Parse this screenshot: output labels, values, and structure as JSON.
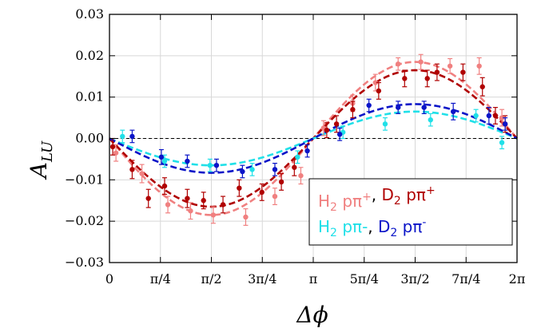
{
  "chart_data": {
    "type": "scatter",
    "xlabel": "Δϕ",
    "ylabel_main": "A",
    "ylabel_sub": "LU",
    "xlim": [
      0,
      6.2832
    ],
    "ylim": [
      -0.03,
      0.03
    ],
    "grid": true,
    "legend_position": "bottom-right",
    "x_ticks": [
      {
        "value": 0,
        "label": "0"
      },
      {
        "value": 0.7854,
        "label": "π/4"
      },
      {
        "value": 1.5708,
        "label": "π/2"
      },
      {
        "value": 2.3562,
        "label": "3π/4"
      },
      {
        "value": 3.1416,
        "label": "π"
      },
      {
        "value": 3.927,
        "label": "5π/4"
      },
      {
        "value": 4.7124,
        "label": "3π/2"
      },
      {
        "value": 5.4978,
        "label": "7π/4"
      },
      {
        "value": 6.2832,
        "label": "2π"
      }
    ],
    "y_ticks": [
      {
        "value": 0.03,
        "label": "0.03"
      },
      {
        "value": 0.02,
        "label": "0.02"
      },
      {
        "value": 0.01,
        "label": "0.01"
      },
      {
        "value": 0.0,
        "label": "0.00"
      },
      {
        "value": -0.01,
        "label": "−0.01"
      },
      {
        "value": -0.02,
        "label": "−0.02"
      },
      {
        "value": -0.03,
        "label": "−0.03"
      }
    ],
    "legend": {
      "line1": [
        {
          "text": "H",
          "sub": "2",
          "rest": " pπ",
          "sup": "+",
          "color": "#f08080"
        },
        {
          "text": ", ",
          "color": "#000000"
        },
        {
          "text": "D",
          "sub": "2",
          "rest": " pπ",
          "sup": "+",
          "color": "#b00000"
        }
      ],
      "line2": [
        {
          "text": "H",
          "sub": "2",
          "rest": " pπ-",
          "sup": "",
          "color": "#20e0e8"
        },
        {
          "text": ", ",
          "color": "#000000"
        },
        {
          "text": "D",
          "sub": "2",
          "rest": " pπ",
          "sup": "-",
          "color": "#0a14c8"
        }
      ]
    },
    "series": [
      {
        "color": "#f08080",
        "amplitude": -0.0185,
        "x": [
          0.1,
          0.5,
          0.9,
          1.25,
          1.6,
          2.1,
          2.55,
          2.95,
          3.3,
          3.75,
          4.1,
          4.45,
          4.8,
          5.25,
          5.7,
          6.05
        ],
        "y": [
          -0.0035,
          -0.0085,
          -0.016,
          -0.0175,
          -0.0185,
          -0.019,
          -0.014,
          -0.009,
          0.0025,
          0.0085,
          0.0135,
          0.018,
          0.0185,
          0.0175,
          0.0175,
          0.005
        ],
        "err": [
          0.002,
          0.0022,
          0.002,
          0.002,
          0.002,
          0.002,
          0.002,
          0.002,
          0.0018,
          0.002,
          0.002,
          0.0015,
          0.0018,
          0.0018,
          0.002,
          0.002
        ]
      },
      {
        "color": "#b00000",
        "amplitude": -0.0165,
        "x": [
          0.05,
          0.35,
          0.6,
          0.85,
          1.2,
          1.45,
          1.75,
          2.0,
          2.35,
          2.65,
          2.85,
          3.35,
          3.5,
          3.75,
          4.15,
          4.55,
          4.9,
          5.05,
          5.45,
          5.75,
          5.95,
          6.1
        ],
        "y": [
          -0.002,
          -0.0075,
          -0.0145,
          -0.0115,
          -0.0145,
          -0.015,
          -0.016,
          -0.012,
          -0.013,
          -0.0105,
          -0.007,
          0.002,
          0.0035,
          0.007,
          0.0115,
          0.0145,
          0.0145,
          0.016,
          0.016,
          0.0125,
          0.0055,
          0.0035
        ],
        "err": [
          0.002,
          0.0022,
          0.0022,
          0.002,
          0.0022,
          0.002,
          0.002,
          0.002,
          0.002,
          0.002,
          0.002,
          0.0018,
          0.002,
          0.002,
          0.002,
          0.002,
          0.002,
          0.002,
          0.002,
          0.0022,
          0.002,
          0.002
        ]
      },
      {
        "color": "#20e0e8",
        "amplitude": -0.0065,
        "x": [
          0.2,
          0.85,
          1.55,
          2.2,
          2.9,
          3.6,
          4.25,
          4.95,
          5.65,
          6.05
        ],
        "y": [
          0.0005,
          -0.0055,
          -0.0065,
          -0.0075,
          -0.0045,
          0.0015,
          0.0035,
          0.0045,
          0.0055,
          -0.001
        ],
        "err": [
          0.0015,
          0.0015,
          0.0015,
          0.0015,
          0.0015,
          0.0015,
          0.0015,
          0.0015,
          0.0015,
          0.0015
        ]
      },
      {
        "color": "#0a14c8",
        "amplitude": -0.0083,
        "x": [
          0.35,
          0.8,
          1.2,
          1.65,
          2.05,
          2.55,
          3.05,
          3.55,
          4.0,
          4.45,
          4.85,
          5.3,
          5.85,
          6.1
        ],
        "y": [
          0.0005,
          -0.0045,
          -0.0055,
          -0.0065,
          -0.008,
          -0.0075,
          -0.003,
          0.001,
          0.008,
          0.0075,
          0.0075,
          0.0065,
          0.0055,
          0.0035
        ],
        "err": [
          0.0015,
          0.0018,
          0.0015,
          0.0015,
          0.0015,
          0.0015,
          0.0015,
          0.0015,
          0.0015,
          0.0015,
          0.0015,
          0.002,
          0.002,
          0.0015
        ]
      }
    ]
  }
}
